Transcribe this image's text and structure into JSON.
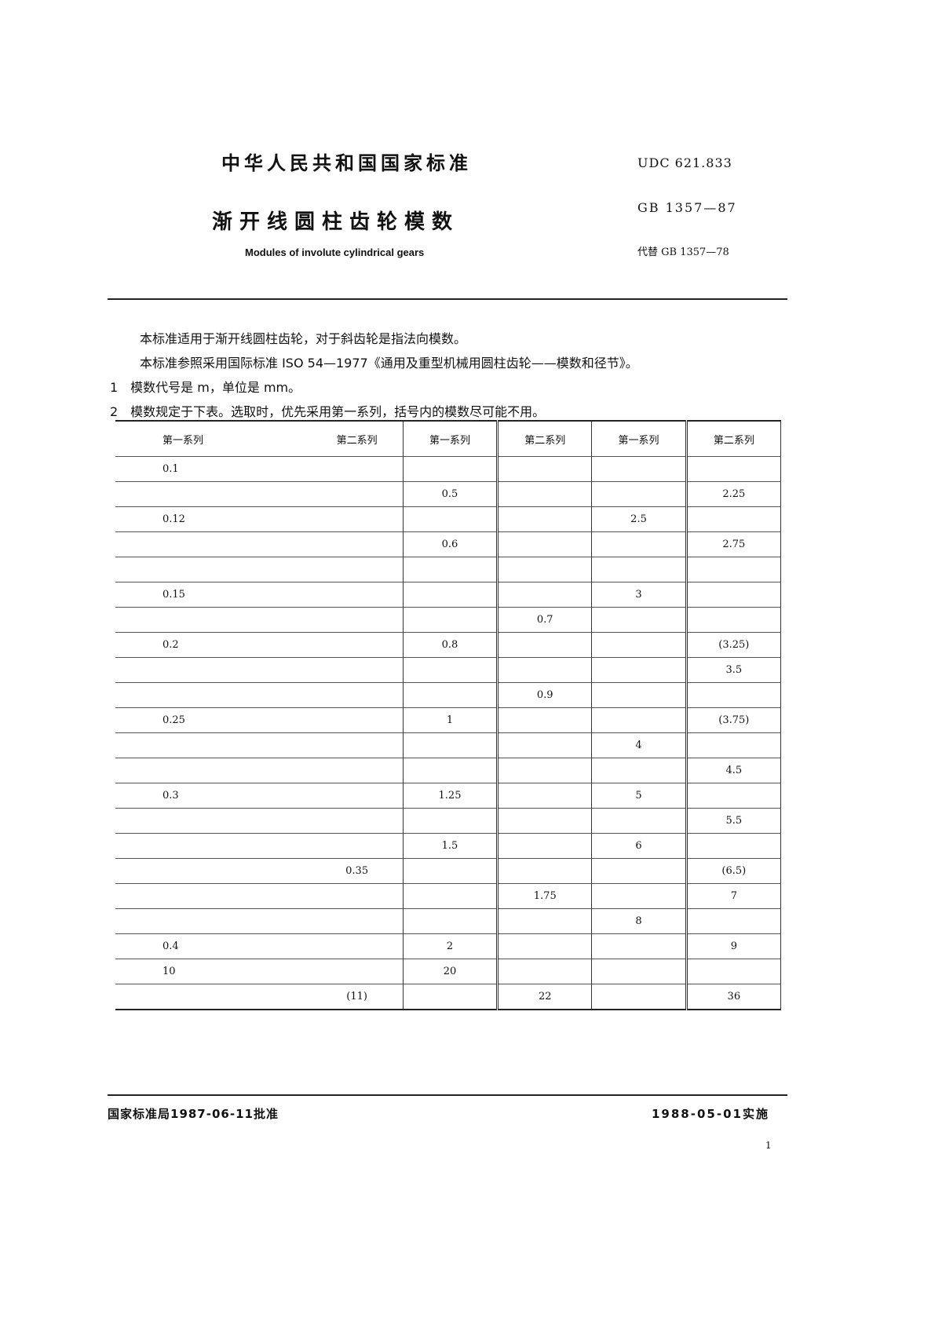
{
  "header": {
    "standard_org": "中华人民共和国国家标准",
    "title_cn": "渐开线圆柱齿轮模数",
    "title_en": "Modules of involute cylindrical gears",
    "udc": "UDC 621.833",
    "gb_code": "GB 1357—87",
    "replaces": "代替 GB 1357—78"
  },
  "body": {
    "para1": "本标准适用于渐开线圆柱齿轮，对于斜齿轮是指法向模数。",
    "para2": "本标准参照采用国际标准 ISO 54—1977《通用及重型机械用圆柱齿轮——模数和径节》。",
    "item1": "1　模数代号是 m，单位是 mm。",
    "item2": "2　模数规定于下表。选取时，优先采用第一系列，括号内的模数尽可能不用。"
  },
  "table": {
    "headers": [
      "第一系列",
      "第二系列",
      "第一系列",
      "第二系列",
      "第一系列",
      "第二系列"
    ],
    "rows": [
      [
        "0.1",
        "",
        "",
        "",
        "",
        ""
      ],
      [
        "",
        "",
        "0.5",
        "",
        "",
        "2.25"
      ],
      [
        "0.12",
        "",
        "",
        "",
        "2.5",
        ""
      ],
      [
        "",
        "",
        "0.6",
        "",
        "",
        "2.75"
      ],
      [
        "",
        "",
        "",
        "",
        "",
        ""
      ],
      [
        "0.15",
        "",
        "",
        "",
        "3",
        ""
      ],
      [
        "",
        "",
        "",
        "0.7",
        "",
        ""
      ],
      [
        "0.2",
        "",
        "0.8",
        "",
        "",
        "(3.25)"
      ],
      [
        "",
        "",
        "",
        "",
        "",
        "3.5"
      ],
      [
        "",
        "",
        "",
        "0.9",
        "",
        ""
      ],
      [
        "0.25",
        "",
        "1",
        "",
        "",
        "(3.75)"
      ],
      [
        "",
        "",
        "",
        "",
        "4",
        ""
      ],
      [
        "",
        "",
        "",
        "",
        "",
        "4.5"
      ],
      [
        "0.3",
        "",
        "1.25",
        "",
        "5",
        ""
      ],
      [
        "",
        "",
        "",
        "",
        "",
        "5.5"
      ],
      [
        "",
        "",
        "1.5",
        "",
        "6",
        ""
      ],
      [
        "",
        "0.35",
        "",
        "",
        "",
        "(6.5)"
      ],
      [
        "",
        "",
        "",
        "1.75",
        "",
        "7"
      ],
      [
        "",
        "",
        "",
        "",
        "8",
        ""
      ],
      [
        "0.4",
        "",
        "2",
        "",
        "",
        "9"
      ],
      [
        "10",
        "",
        "20",
        "",
        "",
        ""
      ],
      [
        "",
        "(11)",
        "",
        "22",
        "",
        "36"
      ]
    ]
  },
  "footer": {
    "approved": "国家标准局1987-06-11批准",
    "implemented": "1988-05-01实施",
    "page_number": "1"
  }
}
